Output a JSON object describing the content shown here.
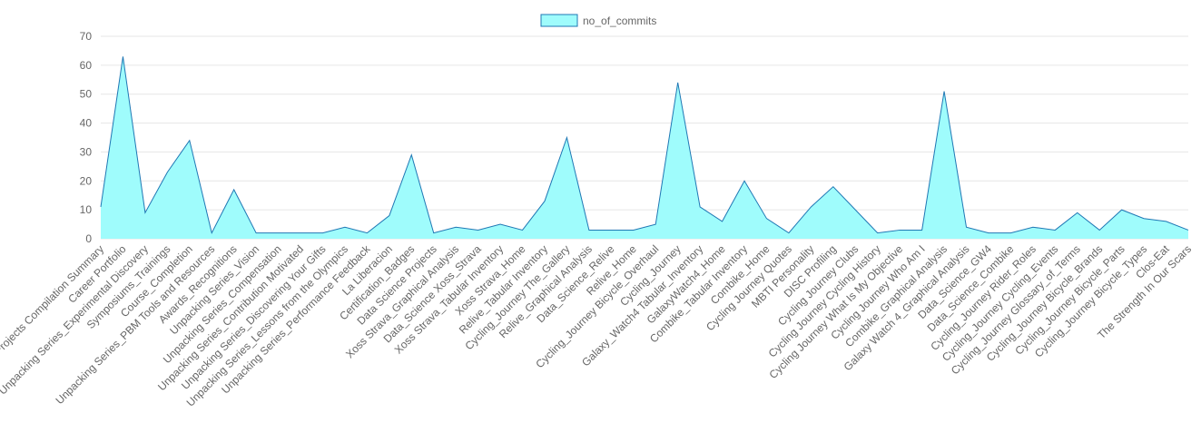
{
  "chart_data": {
    "type": "area",
    "legend": {
      "position": "top-center",
      "label": "no_of_commits"
    },
    "colors": {
      "fill": "#9ffcfc",
      "stroke": "#1f77b4",
      "grid": "#e6e6e6",
      "text": "#666666"
    },
    "ylim": [
      0,
      70
    ],
    "yticks": [
      0,
      10,
      20,
      30,
      40,
      50,
      60,
      70
    ],
    "grid": true,
    "categories": [
      "Projects Compilation Summary",
      "Career Portfolio",
      "Unpacking Series_Experimental Discovery",
      "Symposiums_Trainings",
      "Course_Completion",
      "Unpacking Series_PBM Tools and Resources",
      "Awards_Recognitions",
      "Unpacking Series_Vision",
      "Unpacking Series_Compensation",
      "Unpacking Series_Contribution Motivated",
      "Unpacking Series_Discovering Your Gifts",
      "Unpacking Series_Lessons from the Olympics",
      "Unpacking Series_Performance Feedback",
      "La Liberacion",
      "Certification_Badges",
      "Data Science Projects",
      "Xoss Strava_Graphical Analysis",
      "Data_Science Xoss_Strava",
      "Xoss Strava_Tabular Inventory",
      "Xoss Strava_Home",
      "Relive_Tabular Inventory",
      "Cycling_Journey The_Gallery",
      "Relive_Graphical Analysis",
      "Data_Science_Relive",
      "Relive_Home",
      "Cycling_Journey Bicycle_Overhaul",
      "Cycling_Journey",
      "Galaxy_Watch4 Tabular_Inventory",
      "GalaxyWatch4_Home",
      "Combike_Tabular Inventory",
      "Combike_Home",
      "Cycling Journey Quotes",
      "MBTI Personality",
      "DISC Profiling",
      "Cycling Journey Clubs",
      "Cycling Journey Cycling History",
      "Cycling Journey What Is My Objective",
      "Cycling Journey Who Am I",
      "Combike_Graphical Analysis",
      "Galaxy Watch 4_Graphical Analysis",
      "Data_Science_GW4",
      "Data_Science_Combike",
      "Cycling_Journey Rider_Roles",
      "Cycling_Journey Cycling_Events",
      "Cycling_Journey Glossary_of_Terms",
      "Cycling_Journey Bicycle_Brands",
      "Cycling_Journey Bicycle_Parts",
      "Cycling_Journey Bicycle_Types",
      "Clos-Eat",
      "The Strength In Our Scars"
    ],
    "series": [
      {
        "name": "no_of_commits",
        "values": [
          11,
          63,
          9,
          23,
          34,
          2,
          17,
          2,
          2,
          2,
          2,
          4,
          2,
          8,
          29,
          2,
          4,
          3,
          5,
          3,
          13,
          35,
          3,
          3,
          3,
          5,
          54,
          11,
          6,
          20,
          7,
          2,
          11,
          18,
          10,
          2,
          3,
          3,
          51,
          4,
          2,
          2,
          4,
          3,
          9,
          3,
          10,
          7,
          6,
          3
        ]
      }
    ]
  }
}
